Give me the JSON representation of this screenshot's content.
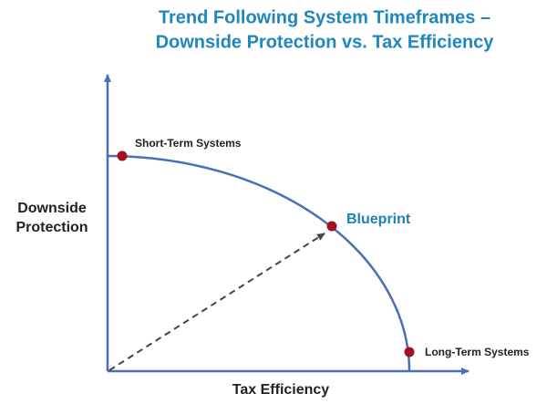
{
  "title": [
    "Trend Following System Timeframes –",
    "Downside Protection vs. Tax Efficiency"
  ],
  "axes": {
    "y_label": [
      "Downside",
      "Protection"
    ],
    "x_label": "Tax Efficiency"
  },
  "points": [
    {
      "label": "Short-Term Systems"
    },
    {
      "label": "Blueprint"
    },
    {
      "label": "Long-Term Systems"
    }
  ]
}
